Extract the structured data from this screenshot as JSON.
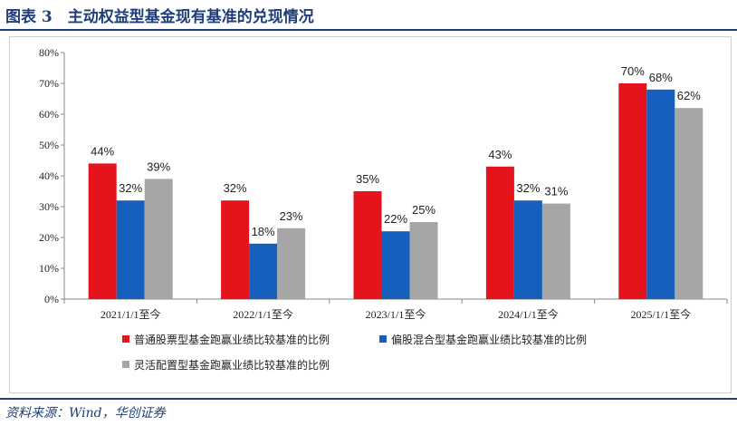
{
  "header": {
    "title": "图表 3　主动权益型基金现有基准的兑现情况"
  },
  "source": "资料来源：Wind，华创证券",
  "chart_data": {
    "type": "bar",
    "categories": [
      "2021/1/1至今",
      "2022/1/1至今",
      "2023/1/1至今",
      "2024/1/1至今",
      "2025/1/1至今"
    ],
    "series": [
      {
        "name": "普通股票型基金跑赢业绩比较基准的比例",
        "color": "#e5141c",
        "values": [
          44,
          32,
          35,
          43,
          70
        ],
        "labels": [
          "44%",
          "32%",
          "35%",
          "43%",
          "70%"
        ]
      },
      {
        "name": "偏股混合型基金跑赢业绩比较基准的比例",
        "color": "#1560bd",
        "values": [
          32,
          18,
          22,
          32,
          68
        ],
        "labels": [
          "32%",
          "18%",
          "22%",
          "32%",
          "68%"
        ]
      },
      {
        "name": "灵活配置型基金跑赢业绩比较基准的比例",
        "color": "#a6a6a6",
        "values": [
          39,
          23,
          25,
          31,
          62
        ],
        "labels": [
          "39%",
          "23%",
          "25%",
          "31%",
          "62%"
        ]
      }
    ],
    "ylim": [
      0,
      80
    ],
    "yticks": [
      "0%",
      "10%",
      "20%",
      "30%",
      "40%",
      "50%",
      "60%",
      "70%",
      "80%"
    ],
    "legend_position": "bottom",
    "grid": false
  }
}
